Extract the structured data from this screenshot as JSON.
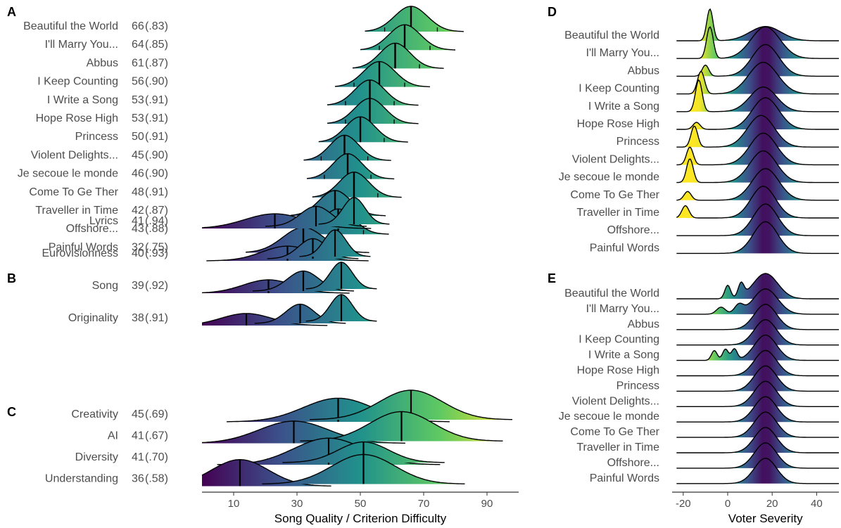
{
  "chart_data": [
    {
      "panel": "A",
      "type": "ridgeline",
      "rows": [
        {
          "name": "Beautiful the World",
          "score": "66",
          "reliability": "(.83)",
          "mean": 66,
          "sd": 5.2
        },
        {
          "name": "I'll Marry You...",
          "score": "64",
          "reliability": "(.85)",
          "mean": 64,
          "sd": 5.0
        },
        {
          "name": "Abbus",
          "score": "61",
          "reliability": "(.87)",
          "mean": 61,
          "sd": 4.8
        },
        {
          "name": "I Keep Counting",
          "score": "56",
          "reliability": "(.90)",
          "mean": 56,
          "sd": 5.0
        },
        {
          "name": "I Write a Song",
          "score": "53",
          "reliability": "(.91)",
          "mean": 53,
          "sd": 4.8
        },
        {
          "name": "Hope Rose High",
          "score": "53",
          "reliability": "(.91)",
          "mean": 53,
          "sd": 4.8
        },
        {
          "name": "Princess",
          "score": "50",
          "reliability": "(.91)",
          "mean": 50,
          "sd": 4.7
        },
        {
          "name": "Violent Delights...",
          "score": "45",
          "reliability": "(.90)",
          "mean": 45,
          "sd": 4.6
        },
        {
          "name": "Je secoue le monde",
          "score": "46",
          "reliability": "(.90)",
          "mean": 46,
          "sd": 4.6
        },
        {
          "name": "Come To Ge Ther",
          "score": "48",
          "reliability": "(.91)",
          "mean": 48,
          "sd": 4.7
        },
        {
          "name": "Traveller in Time",
          "score": "42",
          "reliability": "(.87)",
          "mean": 42,
          "sd": 5.0
        },
        {
          "name": "Offshore...",
          "score": "43",
          "reliability": "(.88)",
          "mean": 43,
          "sd": 5.0
        },
        {
          "name": "Painful Words",
          "score": "32",
          "reliability": "(.75)",
          "mean": 32,
          "sd": 6.5
        }
      ]
    },
    {
      "panel": "B",
      "type": "ridgeline",
      "rows": [
        {
          "name": "Lyrics",
          "score": "41",
          "reliability": "(.94)",
          "modes": [
            [
              23,
              9.5,
              0.55
            ],
            [
              36,
              5,
              0.75
            ],
            [
              48,
              3.5,
              1.0
            ]
          ]
        },
        {
          "name": "Eurovisionness",
          "score": "40",
          "reliability": "(.93)",
          "modes": [
            [
              27,
              8,
              0.55
            ],
            [
              35,
              4.5,
              0.75
            ],
            [
              42,
              3.5,
              1.0
            ]
          ]
        },
        {
          "name": "Song",
          "score": "39",
          "reliability": "(.92)",
          "modes": [
            [
              21,
              8,
              0.5
            ],
            [
              32,
              5,
              0.75
            ],
            [
              44,
              3.5,
              1.0
            ]
          ]
        },
        {
          "name": "Originality",
          "score": "38",
          "reliability": "(.91)",
          "modes": [
            [
              14,
              8,
              0.45
            ],
            [
              31,
              4.5,
              0.72
            ],
            [
              44,
              3.5,
              1.0
            ]
          ]
        }
      ]
    },
    {
      "panel": "C",
      "type": "ridgeline",
      "rows": [
        {
          "name": "Creativity",
          "score": "45",
          "reliability": "(.69)",
          "modes": [
            [
              43,
              11,
              0.8
            ],
            [
              66,
              10,
              1.0
            ]
          ]
        },
        {
          "name": "AI",
          "score": "41",
          "reliability": "(.67)",
          "modes": [
            [
              29,
              11,
              0.75
            ],
            [
              63,
              10,
              1.0
            ]
          ]
        },
        {
          "name": "Diversity",
          "score": "41",
          "reliability": "(.70)",
          "modes": [
            [
              40,
              11,
              0.9
            ],
            [
              51,
              8,
              0.7
            ]
          ]
        },
        {
          "name": "Understanding",
          "score": "36",
          "reliability": "(.58)",
          "modes": [
            [
              12,
              9,
              0.9
            ],
            [
              51,
              10,
              1.0
            ]
          ]
        }
      ]
    },
    {
      "panel": "D",
      "type": "ridgeline",
      "rows": [
        {
          "name": "Beautiful the World",
          "modes": [
            [
              -8,
              1.4,
              1.0
            ],
            [
              17,
              7,
              0.45
            ]
          ]
        },
        {
          "name": "I'll Marry You...",
          "modes": [
            [
              -8,
              1.5,
              0.6
            ],
            [
              17,
              6.5,
              0.6
            ]
          ]
        },
        {
          "name": "Abbus",
          "modes": [
            [
              -10,
              1.5,
              0.3
            ],
            [
              17,
              6,
              0.85
            ]
          ]
        },
        {
          "name": "I Keep Counting",
          "modes": [
            [
              -12,
              1.6,
              0.5
            ],
            [
              16,
              6.5,
              0.7
            ]
          ]
        },
        {
          "name": "I Write a Song",
          "modes": [
            [
              -13,
              1.5,
              0.9
            ],
            [
              16,
              6,
              0.7
            ]
          ]
        },
        {
          "name": "Hope Rose High",
          "modes": [
            [
              -14,
              1.6,
              0.2
            ],
            [
              17,
              6,
              0.9
            ]
          ]
        },
        {
          "name": "Princess",
          "modes": [
            [
              -15,
              1.5,
              0.5
            ],
            [
              15,
              6,
              0.75
            ]
          ]
        },
        {
          "name": "Violent Delights...",
          "modes": [
            [
              -17,
              1.5,
              0.45
            ],
            [
              16,
              6,
              0.8
            ]
          ]
        },
        {
          "name": "Je secoue le monde",
          "modes": [
            [
              -17,
              1.5,
              0.6
            ],
            [
              16,
              6,
              0.8
            ]
          ]
        },
        {
          "name": "Come To Ge Ther",
          "modes": [
            [
              -18,
              1.6,
              0.25
            ],
            [
              17,
              6,
              0.9
            ]
          ]
        },
        {
          "name": "Traveller in Time",
          "modes": [
            [
              -19,
              1.6,
              0.35
            ],
            [
              16,
              5.5,
              0.9
            ]
          ]
        },
        {
          "name": "Offshore...",
          "modes": [
            [
              17,
              5.5,
              1.0
            ]
          ]
        },
        {
          "name": "Painful Words",
          "modes": [
            [
              17,
              5.5,
              1.0
            ]
          ]
        }
      ],
      "xlabel": "Voter Severity"
    },
    {
      "panel": "E",
      "type": "ridgeline",
      "rows": [
        {
          "name": "Beautiful the World",
          "modes": [
            [
              0,
              1.3,
              0.5
            ],
            [
              6,
              1.3,
              0.5
            ],
            [
              17,
              5.5,
              0.95
            ]
          ]
        },
        {
          "name": "I'll Marry You...",
          "modes": [
            [
              -3,
              2,
              0.25
            ],
            [
              5,
              2,
              0.3
            ],
            [
              17,
              5.5,
              0.9
            ]
          ]
        },
        {
          "name": "Abbus",
          "modes": [
            [
              17,
              5,
              1.0
            ]
          ]
        },
        {
          "name": "I Keep Counting",
          "modes": [
            [
              17,
              5,
              1.0
            ]
          ]
        },
        {
          "name": "I Write a Song",
          "modes": [
            [
              -6,
              1.3,
              0.35
            ],
            [
              -1,
              1.3,
              0.4
            ],
            [
              3,
              1.3,
              0.4
            ],
            [
              17,
              5,
              0.9
            ]
          ]
        },
        {
          "name": "Hope Rose High",
          "modes": [
            [
              17,
              5,
              1.0
            ]
          ]
        },
        {
          "name": "Princess",
          "modes": [
            [
              17,
              5,
              1.0
            ]
          ]
        },
        {
          "name": "Violent Delights...",
          "modes": [
            [
              17,
              5,
              1.0
            ]
          ]
        },
        {
          "name": "Je secoue le monde",
          "modes": [
            [
              17,
              5,
              1.0
            ]
          ]
        },
        {
          "name": "Come To Ge Ther",
          "modes": [
            [
              17,
              5,
              1.0
            ]
          ]
        },
        {
          "name": "Traveller in Time",
          "modes": [
            [
              17,
              5,
              1.0
            ]
          ]
        },
        {
          "name": "Offshore...",
          "modes": [
            [
              17,
              5,
              1.0
            ]
          ]
        },
        {
          "name": "Painful Words",
          "modes": [
            [
              17,
              5,
              1.0
            ]
          ]
        }
      ],
      "xlabel": "Voter Severity"
    }
  ],
  "left_axis": {
    "xlabel": "Song Quality / Criterion Difficulty",
    "ticks": [
      10,
      30,
      50,
      70,
      90
    ],
    "xlim": [
      0,
      100
    ]
  },
  "right_axis": {
    "ticks": [
      -20,
      0,
      20,
      40
    ],
    "xlim": [
      -25,
      50
    ]
  },
  "colorscale": [
    "#440154",
    "#3b528b",
    "#21918c",
    "#5ec962",
    "#fde725"
  ]
}
